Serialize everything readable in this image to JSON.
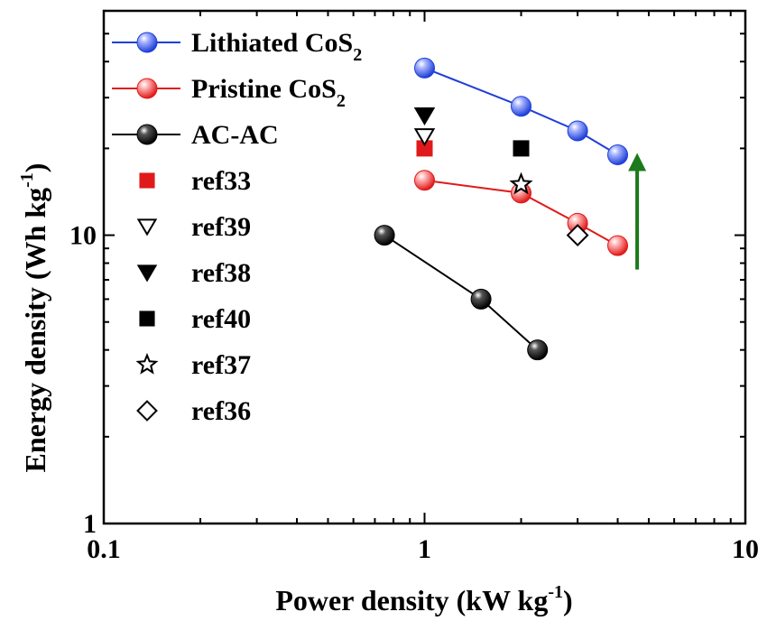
{
  "chart_data": {
    "type": "scatter",
    "xlabel": "Power density (kW kg",
    "xlabel_sup": "-1",
    "xlabel_close": ")",
    "ylabel": "Energy density (Wh kg",
    "ylabel_sup": "-1",
    "ylabel_close": ")",
    "x_scale": "log",
    "y_scale": "log",
    "xlim": [
      0.1,
      10
    ],
    "ylim": [
      1,
      60
    ],
    "x_ticks": [
      {
        "value": 0.1,
        "label": "0.1"
      },
      {
        "value": 1,
        "label": "1"
      },
      {
        "value": 10,
        "label": "10"
      }
    ],
    "y_ticks": [
      {
        "value": 1,
        "label": "1"
      },
      {
        "value": 10,
        "label": "10"
      }
    ],
    "grid": false,
    "legend_position": "top-left",
    "series": [
      {
        "name": "Lithiated CoS",
        "name_sub": "2",
        "kind": "line-ball",
        "color": "#1f3fd8",
        "highlight": "#a9b6ff",
        "x": [
          1.0,
          2.0,
          3.0,
          4.0
        ],
        "y": [
          38,
          28,
          23,
          19
        ]
      },
      {
        "name": "Pristine CoS",
        "name_sub": "2",
        "kind": "line-ball",
        "color": "#e01a1a",
        "highlight": "#ffb3b3",
        "x": [
          1.0,
          2.0,
          3.0,
          4.0
        ],
        "y": [
          15.5,
          14,
          11,
          9.2
        ]
      },
      {
        "name": "AC-AC",
        "kind": "line-ball",
        "color": "#000000",
        "highlight": "#555555",
        "x": [
          0.75,
          1.5,
          2.25
        ],
        "y": [
          10,
          6,
          4
        ]
      },
      {
        "name": "ref33",
        "kind": "square",
        "color": "#e01a1a",
        "x": [
          1.0
        ],
        "y": [
          20
        ]
      },
      {
        "name": "ref39",
        "kind": "triangle-down-open",
        "color": "#000000",
        "x": [
          1.0
        ],
        "y": [
          22
        ]
      },
      {
        "name": "ref38",
        "kind": "triangle-down",
        "color": "#000000",
        "x": [
          1.0
        ],
        "y": [
          26
        ]
      },
      {
        "name": "ref40",
        "kind": "square",
        "color": "#000000",
        "x": [
          2.0
        ],
        "y": [
          20
        ]
      },
      {
        "name": "ref37",
        "kind": "star-open",
        "color": "#000000",
        "x": [
          2.0
        ],
        "y": [
          15
        ]
      },
      {
        "name": "ref36",
        "kind": "diamond-open",
        "color": "#000000",
        "x": [
          3.0
        ],
        "y": [
          10
        ]
      }
    ],
    "annotation": {
      "type": "arrow",
      "color": "#1b7a1b",
      "x": 4.6,
      "y_from": 7.6,
      "y_to": 19
    }
  }
}
